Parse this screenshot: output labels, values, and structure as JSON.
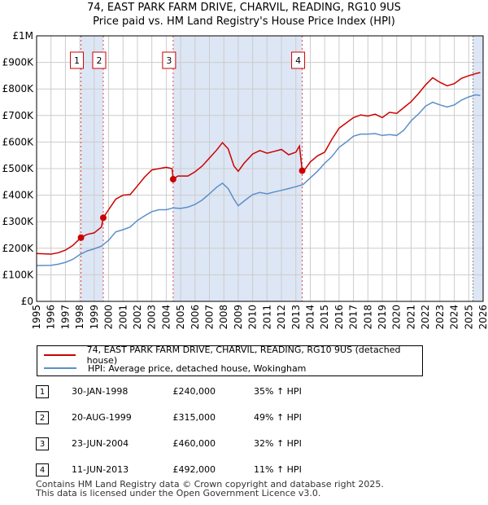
{
  "title_line1": "74, EAST PARK FARM DRIVE, CHARVIL, READING, RG10 9US",
  "title_line2": "Price paid vs. HM Land Registry's House Price Index (HPI)",
  "legend": {
    "property_label": "74, EAST PARK FARM DRIVE, CHARVIL, READING, RG10 9US (detached house)",
    "hpi_label": "HPI: Average price, detached house, Wokingham"
  },
  "sales": [
    {
      "num": "1",
      "date": "30-JAN-1998",
      "price": "£240,000",
      "hpi": "35% ↑ HPI"
    },
    {
      "num": "2",
      "date": "20-AUG-1999",
      "price": "£315,000",
      "hpi": "49% ↑ HPI"
    },
    {
      "num": "3",
      "date": "23-JUN-2004",
      "price": "£460,000",
      "hpi": "32% ↑ HPI"
    },
    {
      "num": "4",
      "date": "11-JUN-2013",
      "price": "£492,000",
      "hpi": "11% ↑ HPI"
    }
  ],
  "footer_line1": "Contains HM Land Registry data © Crown copyright and database right 2025.",
  "footer_line2": "This data is licensed under the Open Government Licence v3.0.",
  "colors": {
    "property": "#cc0000",
    "hpi": "#5b8fc9",
    "shade": "#dde6f5",
    "grid": "#cccccc"
  },
  "chart_data": {
    "type": "line",
    "title": "74, EAST PARK FARM DRIVE, CHARVIL, READING, RG10 9US",
    "subtitle": "Price paid vs. HM Land Registry's House Price Index (HPI)",
    "xlim": [
      1995.0,
      2026.0
    ],
    "ylim": [
      0,
      1000000
    ],
    "y_ticks": [
      0,
      100000,
      200000,
      300000,
      400000,
      500000,
      600000,
      700000,
      800000,
      900000,
      1000000
    ],
    "y_tick_labels": [
      "£0",
      "£100K",
      "£200K",
      "£300K",
      "£400K",
      "£500K",
      "£600K",
      "£700K",
      "£800K",
      "£900K",
      "£1M"
    ],
    "x_ticks": [
      1995,
      1996,
      1997,
      1998,
      1999,
      2000,
      2001,
      2002,
      2003,
      2004,
      2005,
      2006,
      2007,
      2008,
      2009,
      2010,
      2011,
      2012,
      2013,
      2014,
      2015,
      2016,
      2017,
      2018,
      2019,
      2020,
      2021,
      2022,
      2023,
      2024,
      2025,
      2026
    ],
    "shaded_ranges": [
      [
        1998.08,
        1999.63
      ],
      [
        2004.48,
        2013.44
      ],
      [
        2025.3,
        2026.0
      ]
    ],
    "sale_markers": [
      {
        "label": "1",
        "x": 1998.08,
        "y": 240000
      },
      {
        "label": "2",
        "x": 1999.63,
        "y": 315000
      },
      {
        "label": "3",
        "x": 2004.48,
        "y": 460000
      },
      {
        "label": "4",
        "x": 2013.44,
        "y": 492000
      }
    ],
    "series": [
      {
        "name": "74, EAST PARK FARM DRIVE, CHARVIL, READING, RG10 9US (detached house)",
        "color": "#cc0000",
        "points": [
          [
            1995.0,
            180000
          ],
          [
            1996.0,
            178000
          ],
          [
            1996.5,
            183000
          ],
          [
            1997.0,
            193000
          ],
          [
            1997.5,
            210000
          ],
          [
            1998.08,
            240000
          ],
          [
            1998.5,
            252000
          ],
          [
            1999.0,
            258000
          ],
          [
            1999.5,
            280000
          ],
          [
            1999.63,
            315000
          ],
          [
            2000.0,
            345000
          ],
          [
            2000.5,
            385000
          ],
          [
            2001.0,
            400000
          ],
          [
            2001.5,
            402000
          ],
          [
            2002.0,
            435000
          ],
          [
            2002.5,
            468000
          ],
          [
            2003.0,
            495000
          ],
          [
            2003.5,
            500000
          ],
          [
            2004.0,
            505000
          ],
          [
            2004.4,
            500000
          ],
          [
            2004.48,
            460000
          ],
          [
            2004.8,
            472000
          ],
          [
            2005.5,
            472000
          ],
          [
            2006.0,
            488000
          ],
          [
            2006.5,
            510000
          ],
          [
            2007.0,
            540000
          ],
          [
            2007.5,
            570000
          ],
          [
            2007.9,
            598000
          ],
          [
            2008.3,
            575000
          ],
          [
            2008.7,
            510000
          ],
          [
            2009.0,
            490000
          ],
          [
            2009.4,
            520000
          ],
          [
            2010.0,
            555000
          ],
          [
            2010.5,
            568000
          ],
          [
            2011.0,
            558000
          ],
          [
            2011.5,
            565000
          ],
          [
            2012.0,
            572000
          ],
          [
            2012.5,
            552000
          ],
          [
            2013.0,
            562000
          ],
          [
            2013.25,
            585000
          ],
          [
            2013.44,
            492000
          ],
          [
            2013.6,
            495000
          ],
          [
            2014.0,
            525000
          ],
          [
            2014.5,
            548000
          ],
          [
            2015.0,
            562000
          ],
          [
            2015.5,
            610000
          ],
          [
            2016.0,
            652000
          ],
          [
            2016.5,
            672000
          ],
          [
            2017.0,
            692000
          ],
          [
            2017.5,
            702000
          ],
          [
            2018.0,
            698000
          ],
          [
            2018.5,
            705000
          ],
          [
            2019.0,
            692000
          ],
          [
            2019.5,
            712000
          ],
          [
            2020.0,
            708000
          ],
          [
            2020.5,
            730000
          ],
          [
            2021.0,
            752000
          ],
          [
            2021.5,
            782000
          ],
          [
            2022.0,
            815000
          ],
          [
            2022.5,
            842000
          ],
          [
            2023.0,
            825000
          ],
          [
            2023.5,
            812000
          ],
          [
            2024.0,
            820000
          ],
          [
            2024.5,
            840000
          ],
          [
            2025.0,
            850000
          ],
          [
            2025.5,
            858000
          ],
          [
            2025.8,
            862000
          ]
        ]
      },
      {
        "name": "HPI: Average price, detached house, Wokingham",
        "color": "#5b8fc9",
        "points": [
          [
            1995.0,
            135000
          ],
          [
            1996.0,
            136000
          ],
          [
            1996.5,
            140000
          ],
          [
            1997.0,
            147000
          ],
          [
            1997.5,
            158000
          ],
          [
            1998.0,
            176000
          ],
          [
            1998.5,
            190000
          ],
          [
            1999.0,
            198000
          ],
          [
            1999.5,
            208000
          ],
          [
            2000.0,
            230000
          ],
          [
            2000.5,
            262000
          ],
          [
            2001.0,
            270000
          ],
          [
            2001.5,
            280000
          ],
          [
            2002.0,
            305000
          ],
          [
            2002.5,
            322000
          ],
          [
            2003.0,
            338000
          ],
          [
            2003.5,
            345000
          ],
          [
            2004.0,
            345000
          ],
          [
            2004.5,
            352000
          ],
          [
            2005.0,
            350000
          ],
          [
            2005.5,
            355000
          ],
          [
            2006.0,
            365000
          ],
          [
            2006.5,
            382000
          ],
          [
            2007.0,
            405000
          ],
          [
            2007.5,
            430000
          ],
          [
            2007.9,
            445000
          ],
          [
            2008.3,
            425000
          ],
          [
            2008.7,
            385000
          ],
          [
            2009.0,
            360000
          ],
          [
            2009.5,
            382000
          ],
          [
            2010.0,
            402000
          ],
          [
            2010.5,
            410000
          ],
          [
            2011.0,
            405000
          ],
          [
            2011.5,
            412000
          ],
          [
            2012.0,
            418000
          ],
          [
            2012.5,
            425000
          ],
          [
            2013.0,
            432000
          ],
          [
            2013.5,
            440000
          ],
          [
            2014.0,
            465000
          ],
          [
            2014.5,
            490000
          ],
          [
            2015.0,
            520000
          ],
          [
            2015.5,
            545000
          ],
          [
            2016.0,
            580000
          ],
          [
            2016.5,
            600000
          ],
          [
            2017.0,
            622000
          ],
          [
            2017.5,
            630000
          ],
          [
            2018.0,
            630000
          ],
          [
            2018.5,
            632000
          ],
          [
            2019.0,
            625000
          ],
          [
            2019.5,
            628000
          ],
          [
            2020.0,
            625000
          ],
          [
            2020.5,
            645000
          ],
          [
            2021.0,
            680000
          ],
          [
            2021.5,
            705000
          ],
          [
            2022.0,
            735000
          ],
          [
            2022.5,
            750000
          ],
          [
            2023.0,
            740000
          ],
          [
            2023.5,
            732000
          ],
          [
            2024.0,
            740000
          ],
          [
            2024.5,
            758000
          ],
          [
            2025.0,
            770000
          ],
          [
            2025.5,
            778000
          ],
          [
            2025.8,
            775000
          ]
        ]
      }
    ]
  }
}
